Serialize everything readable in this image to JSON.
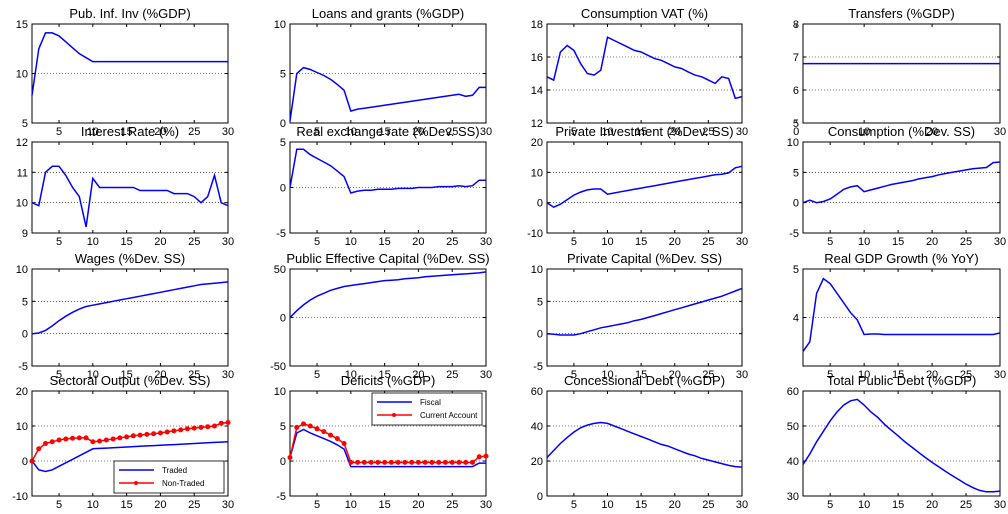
{
  "colors": {
    "line": "#0000ff",
    "marker": "#ff0000",
    "axis": "#000000",
    "grid": "#000000"
  },
  "chart_data": [
    {
      "type": "line",
      "title": "Pub. Inf. Inv (%GDP)",
      "xlim": [
        1,
        30
      ],
      "ylim": [
        5,
        15
      ],
      "yticks": [
        5,
        10,
        15
      ],
      "xticks": [
        5,
        10,
        15,
        20,
        25,
        30
      ],
      "series": [
        {
          "values": [
            7.8,
            12.5,
            14.1,
            14.1,
            13.8,
            13.2,
            12.6,
            12.0,
            11.6,
            11.2,
            11.2,
            11.2,
            11.2,
            11.2,
            11.2,
            11.2,
            11.2,
            11.2,
            11.2,
            11.2,
            11.2,
            11.2,
            11.2,
            11.2,
            11.2,
            11.2,
            11.2,
            11.2,
            11.2,
            11.2
          ]
        }
      ]
    },
    {
      "type": "line",
      "title": "Loans and grants (%GDP)",
      "xlim": [
        1,
        30
      ],
      "ylim": [
        0,
        10
      ],
      "yticks": [
        0,
        5,
        10
      ],
      "xticks": [
        5,
        10,
        15,
        20,
        25,
        30
      ],
      "series": [
        {
          "values": [
            0.2,
            5.0,
            5.6,
            5.4,
            5.1,
            4.8,
            4.4,
            3.9,
            3.3,
            1.2,
            1.4,
            1.5,
            1.6,
            1.7,
            1.8,
            1.9,
            2.0,
            2.1,
            2.2,
            2.3,
            2.4,
            2.5,
            2.6,
            2.7,
            2.8,
            2.9,
            2.7,
            2.8,
            3.6,
            3.6
          ]
        }
      ]
    },
    {
      "type": "line",
      "title": "Consumption VAT (%)",
      "xlim": [
        1,
        30
      ],
      "ylim": [
        12,
        18
      ],
      "yticks": [
        12,
        14,
        16,
        18
      ],
      "xticks": [
        5,
        10,
        15,
        20,
        25,
        30
      ],
      "series": [
        {
          "values": [
            14.8,
            14.6,
            16.3,
            16.7,
            16.4,
            15.6,
            15.0,
            14.9,
            15.2,
            17.2,
            17.0,
            16.8,
            16.6,
            16.4,
            16.3,
            16.1,
            15.9,
            15.8,
            15.6,
            15.4,
            15.3,
            15.1,
            14.9,
            14.8,
            14.6,
            14.4,
            14.8,
            14.7,
            13.5,
            13.6
          ]
        }
      ]
    },
    {
      "type": "line",
      "title": "Transfers (%GDP)",
      "xlim": [
        1,
        30
      ],
      "ylim": [
        5,
        8
      ],
      "yticks": [
        5,
        6,
        7,
        8
      ],
      "xticks": [
        0,
        10,
        20,
        30
      ],
      "xlabels_at_zero_tick": true,
      "series": [
        {
          "values": [
            6.8,
            6.8,
            6.8,
            6.8,
            6.8,
            6.8,
            6.8,
            6.8,
            6.8,
            6.8,
            6.8,
            6.8,
            6.8,
            6.8,
            6.8,
            6.8,
            6.8,
            6.8,
            6.8,
            6.8,
            6.8,
            6.8,
            6.8,
            6.8,
            6.8,
            6.8,
            6.8,
            6.8,
            6.8,
            6.8
          ]
        }
      ]
    },
    {
      "type": "line",
      "title": "Interest Rate (%)",
      "xlim": [
        1,
        30
      ],
      "ylim": [
        9,
        12
      ],
      "yticks": [
        9,
        10,
        11,
        12
      ],
      "xticks": [
        5,
        10,
        15,
        20,
        25,
        30
      ],
      "series": [
        {
          "values": [
            10.0,
            9.9,
            11.0,
            11.2,
            11.2,
            10.9,
            10.5,
            10.2,
            9.2,
            10.8,
            10.5,
            10.5,
            10.5,
            10.5,
            10.5,
            10.5,
            10.4,
            10.4,
            10.4,
            10.4,
            10.4,
            10.3,
            10.3,
            10.3,
            10.2,
            10.0,
            10.2,
            10.9,
            10.0,
            9.9
          ]
        }
      ]
    },
    {
      "type": "line",
      "title": "Real exchange rate (%Dev. SS)",
      "xlim": [
        1,
        30
      ],
      "ylim": [
        -5,
        5
      ],
      "yticks": [
        -5,
        0,
        5
      ],
      "xticks": [
        5,
        10,
        15,
        20,
        25,
        30
      ],
      "series": [
        {
          "values": [
            0.0,
            4.2,
            4.2,
            3.6,
            3.2,
            2.8,
            2.4,
            1.8,
            1.2,
            -0.6,
            -0.4,
            -0.3,
            -0.3,
            -0.2,
            -0.2,
            -0.2,
            -0.1,
            -0.1,
            -0.1,
            0.0,
            0.0,
            0.0,
            0.1,
            0.1,
            0.1,
            0.2,
            0.1,
            0.2,
            0.8,
            0.8
          ]
        }
      ]
    },
    {
      "type": "line",
      "title": "Private Investment (%Dev. SS)",
      "xlim": [
        1,
        30
      ],
      "ylim": [
        -10,
        20
      ],
      "yticks": [
        -10,
        0,
        10,
        20
      ],
      "xticks": [
        5,
        10,
        15,
        20,
        25,
        30
      ],
      "series": [
        {
          "values": [
            0.0,
            -1.5,
            -0.5,
            1.0,
            2.5,
            3.5,
            4.2,
            4.5,
            4.5,
            2.8,
            3.2,
            3.6,
            4.0,
            4.4,
            4.8,
            5.2,
            5.6,
            6.0,
            6.4,
            6.8,
            7.2,
            7.6,
            8.0,
            8.4,
            8.8,
            9.2,
            9.4,
            9.8,
            11.5,
            12.0
          ]
        }
      ]
    },
    {
      "type": "line",
      "title": "Consumption (%Dev. SS)",
      "xlim": [
        1,
        30
      ],
      "ylim": [
        -5,
        10
      ],
      "yticks": [
        -5,
        0,
        5,
        10
      ],
      "xticks": [
        5,
        10,
        15,
        20,
        25,
        30
      ],
      "series": [
        {
          "values": [
            0.0,
            0.4,
            0.0,
            0.2,
            0.6,
            1.4,
            2.2,
            2.6,
            2.8,
            1.8,
            2.1,
            2.4,
            2.7,
            3.0,
            3.2,
            3.4,
            3.6,
            3.9,
            4.1,
            4.3,
            4.6,
            4.8,
            5.0,
            5.2,
            5.4,
            5.6,
            5.7,
            5.8,
            6.6,
            6.7
          ]
        }
      ]
    },
    {
      "type": "line",
      "title": "Wages (%Dev. SS)",
      "xlim": [
        1,
        30
      ],
      "ylim": [
        -5,
        10
      ],
      "yticks": [
        -5,
        0,
        5,
        10
      ],
      "xticks": [
        5,
        10,
        15,
        20,
        25,
        30
      ],
      "series": [
        {
          "values": [
            0.0,
            0.1,
            0.5,
            1.2,
            2.0,
            2.7,
            3.3,
            3.8,
            4.2,
            4.4,
            4.6,
            4.8,
            5.0,
            5.2,
            5.4,
            5.6,
            5.8,
            6.0,
            6.2,
            6.4,
            6.6,
            6.8,
            7.0,
            7.2,
            7.4,
            7.6,
            7.7,
            7.8,
            7.9,
            8.0
          ]
        }
      ]
    },
    {
      "type": "line",
      "title": "Public Effective Capital (%Dev. SS)",
      "xlim": [
        1,
        30
      ],
      "ylim": [
        -50,
        50
      ],
      "yticks": [
        -50,
        0,
        50
      ],
      "xticks": [
        5,
        10,
        15,
        20,
        25,
        30
      ],
      "series": [
        {
          "values": [
            0,
            7,
            13,
            18,
            22,
            25,
            28,
            30,
            32,
            33,
            34,
            35,
            36,
            37,
            38,
            38.5,
            39,
            40,
            40.5,
            41,
            42,
            42.5,
            43,
            43.5,
            44,
            44.5,
            45,
            45.5,
            46,
            47
          ]
        }
      ]
    },
    {
      "type": "line",
      "title": "Private Capital (%Dev. SS)",
      "xlim": [
        1,
        30
      ],
      "ylim": [
        -5,
        10
      ],
      "yticks": [
        -5,
        0,
        5,
        10
      ],
      "xticks": [
        5,
        10,
        15,
        20,
        25,
        30
      ],
      "series": [
        {
          "values": [
            0.0,
            -0.1,
            -0.2,
            -0.2,
            -0.2,
            0.0,
            0.3,
            0.6,
            0.9,
            1.1,
            1.3,
            1.5,
            1.7,
            2.0,
            2.2,
            2.5,
            2.8,
            3.1,
            3.4,
            3.7,
            4.0,
            4.3,
            4.6,
            4.9,
            5.2,
            5.5,
            5.8,
            6.2,
            6.6,
            7.0
          ]
        }
      ]
    },
    {
      "type": "line",
      "title": "Real GDP Growth (% YoY)",
      "xlim": [
        1,
        30
      ],
      "ylim": [
        3,
        5
      ],
      "yticks": [
        4,
        5
      ],
      "xticks": [
        5,
        10,
        15,
        20,
        25,
        30
      ],
      "series": [
        {
          "values": [
            3.3,
            3.5,
            4.5,
            4.8,
            4.7,
            4.5,
            4.3,
            4.1,
            3.95,
            3.65,
            3.66,
            3.66,
            3.65,
            3.65,
            3.65,
            3.65,
            3.65,
            3.65,
            3.65,
            3.65,
            3.65,
            3.65,
            3.65,
            3.65,
            3.65,
            3.65,
            3.65,
            3.65,
            3.65,
            3.68
          ]
        }
      ]
    },
    {
      "type": "line",
      "title": "Sectoral Output (%Dev. SS)",
      "xlim": [
        1,
        30
      ],
      "ylim": [
        -10,
        20
      ],
      "yticks": [
        -10,
        0,
        10,
        20
      ],
      "xticks": [
        5,
        10,
        15,
        20,
        25,
        30
      ],
      "legend": "bottom-right",
      "series": [
        {
          "name": "Traded",
          "color": "#0000ff",
          "values": [
            0.0,
            -2.5,
            -3.0,
            -2.5,
            -1.5,
            -0.5,
            0.5,
            1.5,
            2.5,
            3.5,
            3.6,
            3.7,
            3.8,
            3.9,
            4.0,
            4.1,
            4.2,
            4.3,
            4.4,
            4.5,
            4.6,
            4.7,
            4.8,
            4.9,
            5.0,
            5.1,
            5.2,
            5.3,
            5.4,
            5.5
          ]
        },
        {
          "name": "Non-Traded",
          "color": "#ff0000",
          "marker": true,
          "values": [
            0.0,
            3.5,
            5.0,
            5.5,
            6.0,
            6.3,
            6.5,
            6.6,
            6.6,
            5.5,
            5.7,
            6.0,
            6.3,
            6.6,
            6.9,
            7.2,
            7.4,
            7.6,
            7.8,
            8.0,
            8.3,
            8.6,
            8.9,
            9.2,
            9.4,
            9.6,
            9.8,
            10.0,
            10.8,
            11.0
          ]
        }
      ]
    },
    {
      "type": "line",
      "title": "Deficits (%GDP)",
      "xlim": [
        1,
        30
      ],
      "ylim": [
        -5,
        10
      ],
      "yticks": [
        -5,
        0,
        5,
        10
      ],
      "xticks": [
        5,
        10,
        15,
        20,
        25,
        30
      ],
      "legend": "top-right",
      "series": [
        {
          "name": "Fiscal",
          "color": "#0000ff",
          "values": [
            0.5,
            4.0,
            4.5,
            4.0,
            3.6,
            3.2,
            2.8,
            2.3,
            1.7,
            -0.8,
            -0.8,
            -0.8,
            -0.8,
            -0.8,
            -0.8,
            -0.8,
            -0.8,
            -0.8,
            -0.8,
            -0.8,
            -0.8,
            -0.8,
            -0.8,
            -0.8,
            -0.8,
            -0.8,
            -0.8,
            -0.8,
            -0.3,
            -0.3
          ]
        },
        {
          "name": "Current Account",
          "color": "#ff0000",
          "marker": true,
          "values": [
            0.5,
            4.8,
            5.3,
            5.0,
            4.6,
            4.2,
            3.7,
            3.2,
            2.5,
            -0.2,
            -0.2,
            -0.2,
            -0.2,
            -0.2,
            -0.2,
            -0.2,
            -0.2,
            -0.2,
            -0.2,
            -0.2,
            -0.2,
            -0.2,
            -0.2,
            -0.2,
            -0.2,
            -0.2,
            -0.2,
            -0.2,
            0.6,
            0.7
          ]
        }
      ]
    },
    {
      "type": "line",
      "title": "Concessional Debt (%GDP)",
      "xlim": [
        1,
        30
      ],
      "ylim": [
        0,
        60
      ],
      "yticks": [
        0,
        20,
        40,
        60
      ],
      "xticks": [
        5,
        10,
        15,
        20,
        25,
        30
      ],
      "series": [
        {
          "values": [
            22,
            26,
            30,
            33.5,
            36.5,
            39,
            40.5,
            41.5,
            42,
            41.5,
            40,
            38.5,
            37,
            35.5,
            34,
            32.5,
            31,
            29.5,
            28.5,
            27,
            25.5,
            24,
            23,
            21.5,
            20.5,
            19.5,
            18.5,
            17.5,
            16.8,
            16.5
          ]
        }
      ]
    },
    {
      "type": "line",
      "title": "Total Public Debt (%GDP)",
      "xlim": [
        1,
        30
      ],
      "ylim": [
        30,
        60
      ],
      "yticks": [
        30,
        40,
        50,
        60
      ],
      "xticks": [
        5,
        10,
        15,
        20,
        25,
        30
      ],
      "series": [
        {
          "values": [
            39,
            42,
            45.5,
            48.5,
            51.5,
            54,
            56,
            57.2,
            57.6,
            56,
            54,
            52.5,
            50.5,
            48.8,
            47.2,
            45.5,
            44,
            42.5,
            41,
            39.6,
            38.3,
            37,
            35.8,
            34.6,
            33.4,
            32.4,
            31.6,
            31.2,
            31.2,
            31.4
          ]
        }
      ]
    }
  ]
}
